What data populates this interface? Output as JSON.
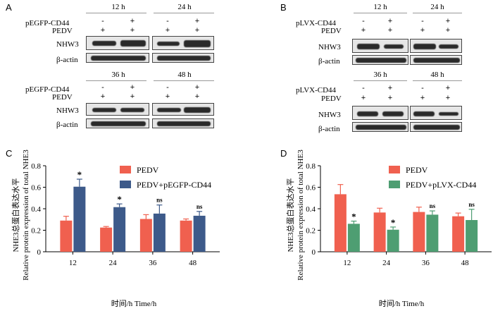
{
  "panel_letters": {
    "a": "A",
    "b": "B",
    "c": "C",
    "d": "D"
  },
  "blots": {
    "row_labels": {
      "overexpress_a": "pEGFP-CD44",
      "overexpress_b": "pLVX-CD44",
      "virus": "PEDV",
      "target": "NHW3",
      "loading": "β-actin"
    },
    "times": [
      "12 h",
      "24 h",
      "36 h",
      "48 h"
    ],
    "signs": {
      "minus": "-",
      "plus": "+"
    }
  },
  "chart_data": [
    {
      "type": "bar",
      "panel": "C",
      "ylabel_cn": "NHE3总蛋白表达水平",
      "ylabel_en": "Relative protein expression of total NHE3",
      "xlabel": "时间/h  Time/h",
      "categories": [
        "12",
        "24",
        "36",
        "48"
      ],
      "ylim": [
        0,
        0.8
      ],
      "yticks": [
        "0",
        "0.2",
        "0.4",
        "0.6",
        "0.8"
      ],
      "legend_position": "top-right",
      "series": [
        {
          "name": "PEDV",
          "color": "#f0604f",
          "values": [
            0.29,
            0.225,
            0.305,
            0.29
          ],
          "errors": [
            0.04,
            0.01,
            0.04,
            0.015
          ]
        },
        {
          "name": "PEDV+pEGFP-CD44",
          "color": "#3d5a8a",
          "values": [
            0.605,
            0.415,
            0.355,
            0.335
          ],
          "errors": [
            0.07,
            0.03,
            0.08,
            0.04
          ]
        }
      ],
      "annotations": [
        "*",
        "*",
        "ns",
        "ns"
      ]
    },
    {
      "type": "bar",
      "panel": "D",
      "ylabel_cn": "NHE3总蛋白表达水平",
      "ylabel_en": "Relative protein expression of total NHE3",
      "xlabel": "时间/h  Time/h",
      "categories": [
        "12",
        "24",
        "36",
        "48"
      ],
      "ylim": [
        0,
        0.8
      ],
      "yticks": [
        "0",
        "0.2",
        "0.4",
        "0.6",
        "0.8"
      ],
      "legend_position": "top-right",
      "series": [
        {
          "name": "PEDV",
          "color": "#f0604f",
          "values": [
            0.535,
            0.365,
            0.37,
            0.33
          ],
          "errors": [
            0.09,
            0.04,
            0.045,
            0.03
          ]
        },
        {
          "name": "PEDV+pLVX-CD44",
          "color": "#4e9e72",
          "values": [
            0.26,
            0.205,
            0.345,
            0.295
          ],
          "errors": [
            0.025,
            0.025,
            0.035,
            0.1
          ]
        }
      ],
      "annotations": [
        "*",
        "*",
        "ns",
        "ns"
      ]
    }
  ]
}
